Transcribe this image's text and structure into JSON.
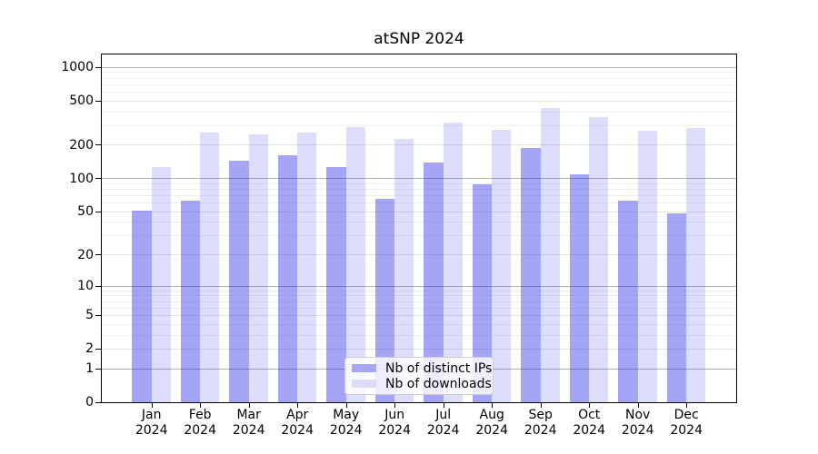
{
  "chart_data": {
    "type": "bar",
    "title": "atSNP 2024",
    "categories": [
      "Jan",
      "Feb",
      "Mar",
      "Apr",
      "May",
      "Jun",
      "Jul",
      "Aug",
      "Sep",
      "Oct",
      "Nov",
      "Dec"
    ],
    "category_year": "2024",
    "series": [
      {
        "name": "Nb of distinct IPs",
        "bar_color": "rgba(30,30,235,0.40)",
        "legend_color": "#a6a6f2",
        "values": [
          51,
          63,
          146,
          162,
          127,
          66,
          140,
          88,
          190,
          109,
          63,
          48
        ]
      },
      {
        "name": "Nb of downloads",
        "bar_color": "rgba(30,30,235,0.15)",
        "legend_color": "#dcdcf9",
        "values": [
          128,
          258,
          250,
          260,
          290,
          230,
          322,
          275,
          430,
          355,
          270,
          286
        ]
      }
    ],
    "yscale": "log1p",
    "ylim": [
      0,
      1325
    ],
    "ytick_values": [
      0,
      1,
      2,
      5,
      10,
      20,
      50,
      100,
      200,
      500,
      1000
    ],
    "ytick_labels": [
      "0",
      "1",
      "2",
      "5",
      "10",
      "20",
      "50",
      "100",
      "200",
      "500",
      "1000"
    ],
    "major_grid_values": [
      1,
      10,
      100,
      1000
    ],
    "legend_position": "lower center",
    "grid": "on",
    "colors": {
      "major_grid": "#b3b3b3",
      "labeled_grid": "#e4e4e4",
      "minor_grid": "#eeeeee",
      "spine": "#000000",
      "background": "#ffffff"
    }
  }
}
